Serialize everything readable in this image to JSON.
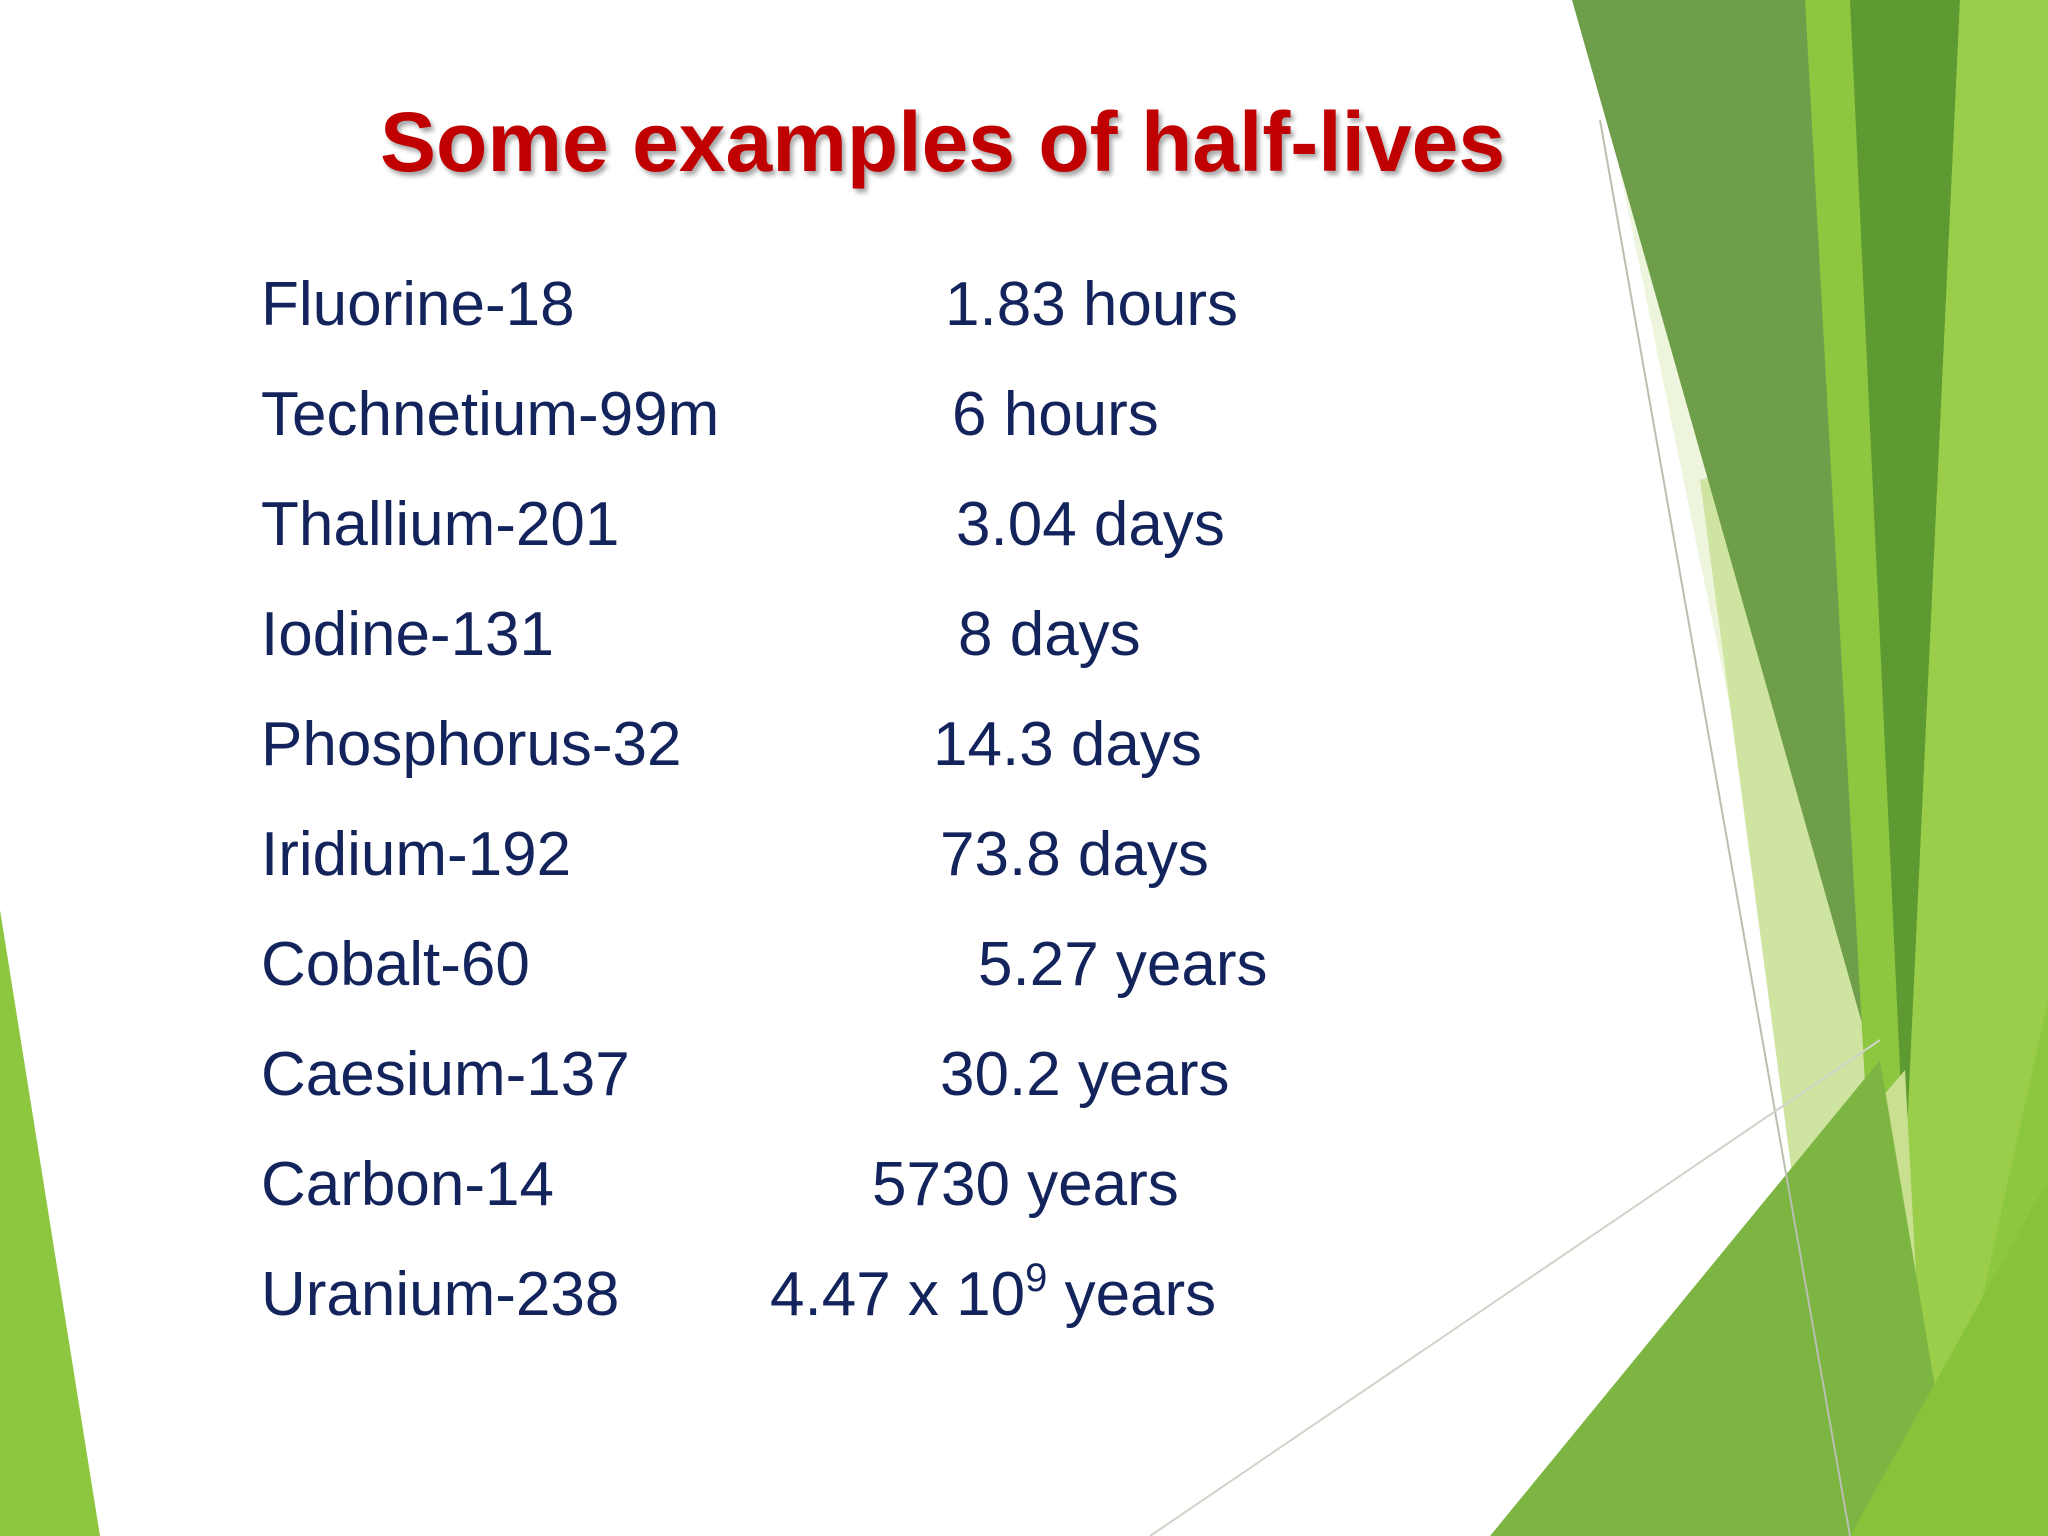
{
  "title": "Some examples of half-lives",
  "colors": {
    "title": "#c00000",
    "text": "#13245c",
    "accent_light": "#d8e9b4",
    "accent_mid": "#8dc63f",
    "accent_dark": "#5e9a32"
  },
  "half_lives": [
    {
      "isotope": "Fluorine-18",
      "half_life": "1.83 hours"
    },
    {
      "isotope": "Technetium-99m",
      "half_life": "6 hours"
    },
    {
      "isotope": "Thallium-201",
      "half_life": "3.04 days"
    },
    {
      "isotope": "Iodine-131",
      "half_life": "8 days"
    },
    {
      "isotope": "Phosphorus-32",
      "half_life": "14.3 days"
    },
    {
      "isotope": "Iridium-192",
      "half_life": "73.8 days"
    },
    {
      "isotope": "Cobalt-60",
      "half_life": "5.27 years"
    },
    {
      "isotope": "Caesium-137",
      "half_life": "30.2 years"
    },
    {
      "isotope": "Carbon-14",
      "half_life": "5730 years"
    },
    {
      "isotope": "Uranium-238",
      "half_life_base": "4.47 x 10",
      "half_life_exp": "9",
      "half_life_unit": " years"
    }
  ]
}
